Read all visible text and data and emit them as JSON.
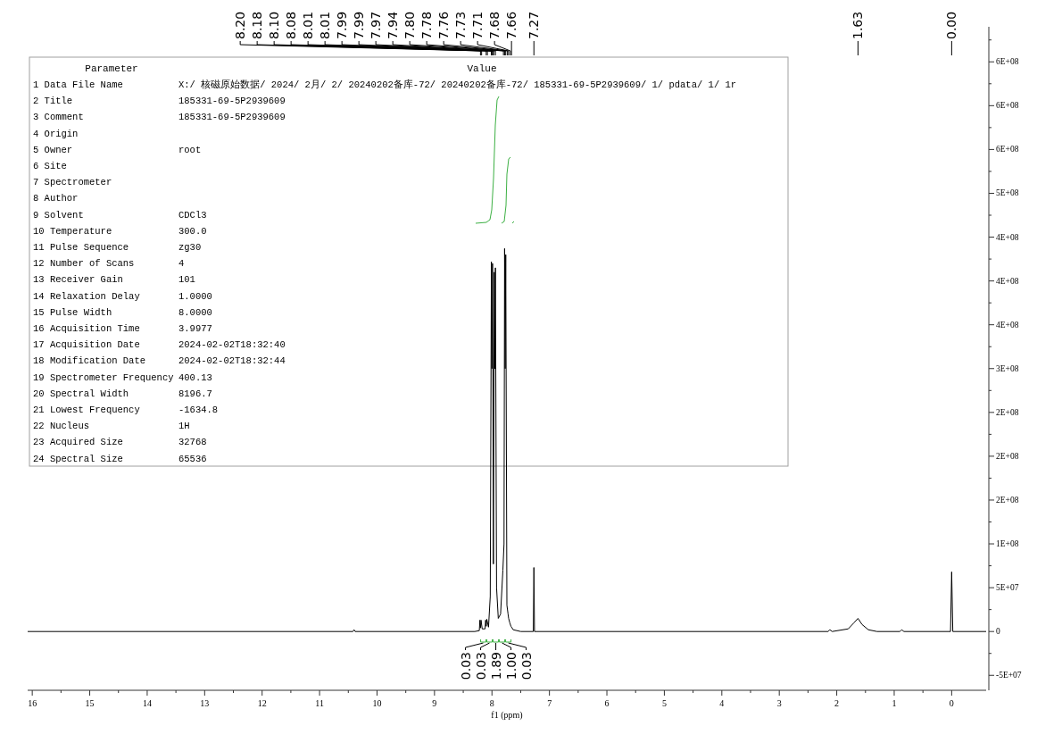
{
  "chart_data": {
    "type": "line",
    "xlabel": "f1 (ppm)",
    "x": [
      16.08,
      10.42,
      10.4,
      10.38,
      8.3,
      8.22,
      8.21,
      8.2,
      8.19,
      8.17,
      8.12,
      8.11,
      8.1,
      8.09,
      8.06,
      8.03,
      8.01,
      8.0,
      7.99,
      7.975,
      7.96,
      7.95,
      7.94,
      7.92,
      7.89,
      7.85,
      7.81,
      7.79,
      7.78,
      7.77,
      7.76,
      7.74,
      7.72,
      7.71,
      7.69,
      7.67,
      7.63,
      7.5,
      7.28,
      7.27,
      7.26,
      2.15,
      2.12,
      2.08,
      1.8,
      1.7,
      1.63,
      1.56,
      1.45,
      1.3,
      0.9,
      0.87,
      0.83,
      0.02,
      0.0,
      -0.02,
      -0.6
    ],
    "series": [
      {
        "color": "#000000",
        "values": [
          0,
          0,
          2000000,
          0,
          0,
          1000000,
          13000000,
          4000000,
          13000000,
          3000000,
          3000000,
          13000000,
          6000000,
          14000000,
          5000000,
          40000000,
          422000000,
          300000000,
          420000000,
          77000000,
          410000000,
          300000000,
          415000000,
          50000000,
          15000000,
          20000000,
          70000000,
          100000000,
          437000000,
          300000000,
          430000000,
          30000000,
          20000000,
          15000000,
          10000000,
          6000000,
          2000000,
          0,
          0,
          73000000,
          0,
          0,
          2000000,
          0,
          3000000,
          10000000,
          15000000,
          8000000,
          2000000,
          0,
          0,
          2000000,
          0,
          0,
          68000000,
          0,
          0
        ]
      }
    ],
    "xlim": [
      16.08,
      -0.6
    ],
    "xticks": [
      0,
      1,
      2,
      3,
      4,
      5,
      6,
      7,
      8,
      9,
      10,
      11,
      12,
      13,
      14,
      15,
      16,
      {
        "value": 0.5,
        "label": null
      },
      {
        "value": 1.5,
        "label": null
      },
      {
        "value": 2.5,
        "label": null
      },
      {
        "value": 3.5,
        "label": null
      },
      {
        "value": 4.5,
        "label": null
      },
      {
        "value": 5.5,
        "label": null
      },
      {
        "value": 6.5,
        "label": null
      },
      {
        "value": 7.5,
        "label": null
      },
      {
        "value": 8.5,
        "label": null
      },
      {
        "value": 9.5,
        "label": null
      },
      {
        "value": 10.5,
        "label": null
      },
      {
        "value": 11.5,
        "label": null
      },
      {
        "value": 12.5,
        "label": null
      },
      {
        "value": 13.5,
        "label": null
      },
      {
        "value": 14.5,
        "label": null
      },
      {
        "value": 15.5,
        "label": null
      }
    ],
    "ylim": [
      -64000000,
      690000000
    ],
    "yticks": [
      {
        "value": -50000000,
        "label": "-5E+07"
      },
      0,
      {
        "value": 50000000,
        "label": "5E+07"
      },
      {
        "value": 100000000,
        "label": "1E+08"
      },
      {
        "value": 150000000,
        "label": "2E+08"
      },
      {
        "value": 200000000,
        "label": "2E+08"
      },
      {
        "value": 250000000,
        "label": "2E+08"
      },
      {
        "value": 300000000,
        "label": "3E+08"
      },
      {
        "value": 350000000,
        "label": "4E+08"
      },
      {
        "value": 400000000,
        "label": "4E+08"
      },
      {
        "value": 450000000,
        "label": "4E+08"
      },
      {
        "value": 500000000,
        "label": "5E+08"
      },
      {
        "value": 550000000,
        "label": "6E+08"
      },
      {
        "value": 600000000,
        "label": "6E+08"
      },
      {
        "value": 650000000,
        "label": "6E+08"
      },
      {
        "value": -25000000,
        "label": null
      },
      {
        "value": 25000000,
        "label": null
      },
      {
        "value": 75000000,
        "label": null
      },
      {
        "value": 125000000,
        "label": null
      },
      {
        "value": 175000000,
        "label": null
      },
      {
        "value": 225000000,
        "label": null
      },
      {
        "value": 275000000,
        "label": null
      },
      {
        "value": 325000000,
        "label": null
      },
      {
        "value": 375000000,
        "label": null
      },
      {
        "value": 425000000,
        "label": null
      },
      {
        "value": 475000000,
        "label": null
      },
      {
        "value": 525000000,
        "label": null
      },
      {
        "value": 575000000,
        "label": null
      },
      {
        "value": 625000000,
        "label": null
      },
      {
        "value": 675000000,
        "label": null
      }
    ],
    "annotations": [
      "Parameter",
      "Value",
      "1 Data File Name",
      "X:/ 核磁原始数据/ 2024/ 2月/ 2/ 20240202备库-72/ 20240202备库-72/ 185331-69-5P2939609/ 1/ pdata/ 1/ 1r",
      "2 Title",
      "185331-69-5P2939609",
      "3 Comment",
      "185331-69-5P2939609",
      "4 Origin",
      "5 Owner",
      "root",
      "6 Site",
      "7 Spectrometer",
      "8 Author",
      "9 Solvent",
      "CDCl3",
      "10 Temperature",
      "300.0",
      "11 Pulse Sequence",
      "zg30",
      "12 Number of Scans",
      "4",
      "13 Receiver Gain",
      "101",
      "14 Relaxation Delay",
      "1.0000",
      "15 Pulse Width",
      "8.0000",
      "16 Acquisition Time",
      "3.9977",
      "17 Acquisition Date",
      "2024-02-02T18:32:40",
      "18 Modification Date",
      "2024-02-02T18:32:44",
      "19 Spectrometer Frequency",
      "400.13",
      "20 Spectral Width",
      "8196.7",
      "21 Lowest Frequency",
      "-1634.8",
      "22 Nucleus",
      "1H",
      "23 Acquired Size",
      "32768",
      "24 Spectral Size",
      "65536",
      {
        "text": "8.20",
        "x": 8.2
      },
      {
        "text": "8.18",
        "x": 8.18
      },
      {
        "text": "8.10",
        "x": 8.1
      },
      {
        "text": "8.08",
        "x": 8.08
      },
      {
        "text": "8.01",
        "x": 8.01
      },
      {
        "text": "8.01",
        "x": 8.01
      },
      {
        "text": "7.99",
        "x": 7.99
      },
      {
        "text": "7.99",
        "x": 7.99
      },
      {
        "text": "7.97",
        "x": 7.97
      },
      {
        "text": "7.94",
        "x": 7.94
      },
      {
        "text": "7.80",
        "x": 7.8
      },
      {
        "text": "7.78",
        "x": 7.78
      },
      {
        "text": "7.76",
        "x": 7.76
      },
      {
        "text": "7.73",
        "x": 7.73
      },
      {
        "text": "7.71",
        "x": 7.71
      },
      {
        "text": "7.68",
        "x": 7.68
      },
      {
        "text": "7.66",
        "x": 7.66
      },
      {
        "text": "7.27",
        "x": 7.27
      },
      {
        "text": "1.63",
        "x": 1.63
      },
      {
        "text": "0.00",
        "x": 0.0
      },
      "0.03",
      "0.03",
      "1.89",
      "1.00",
      "0.03"
    ]
  }
}
